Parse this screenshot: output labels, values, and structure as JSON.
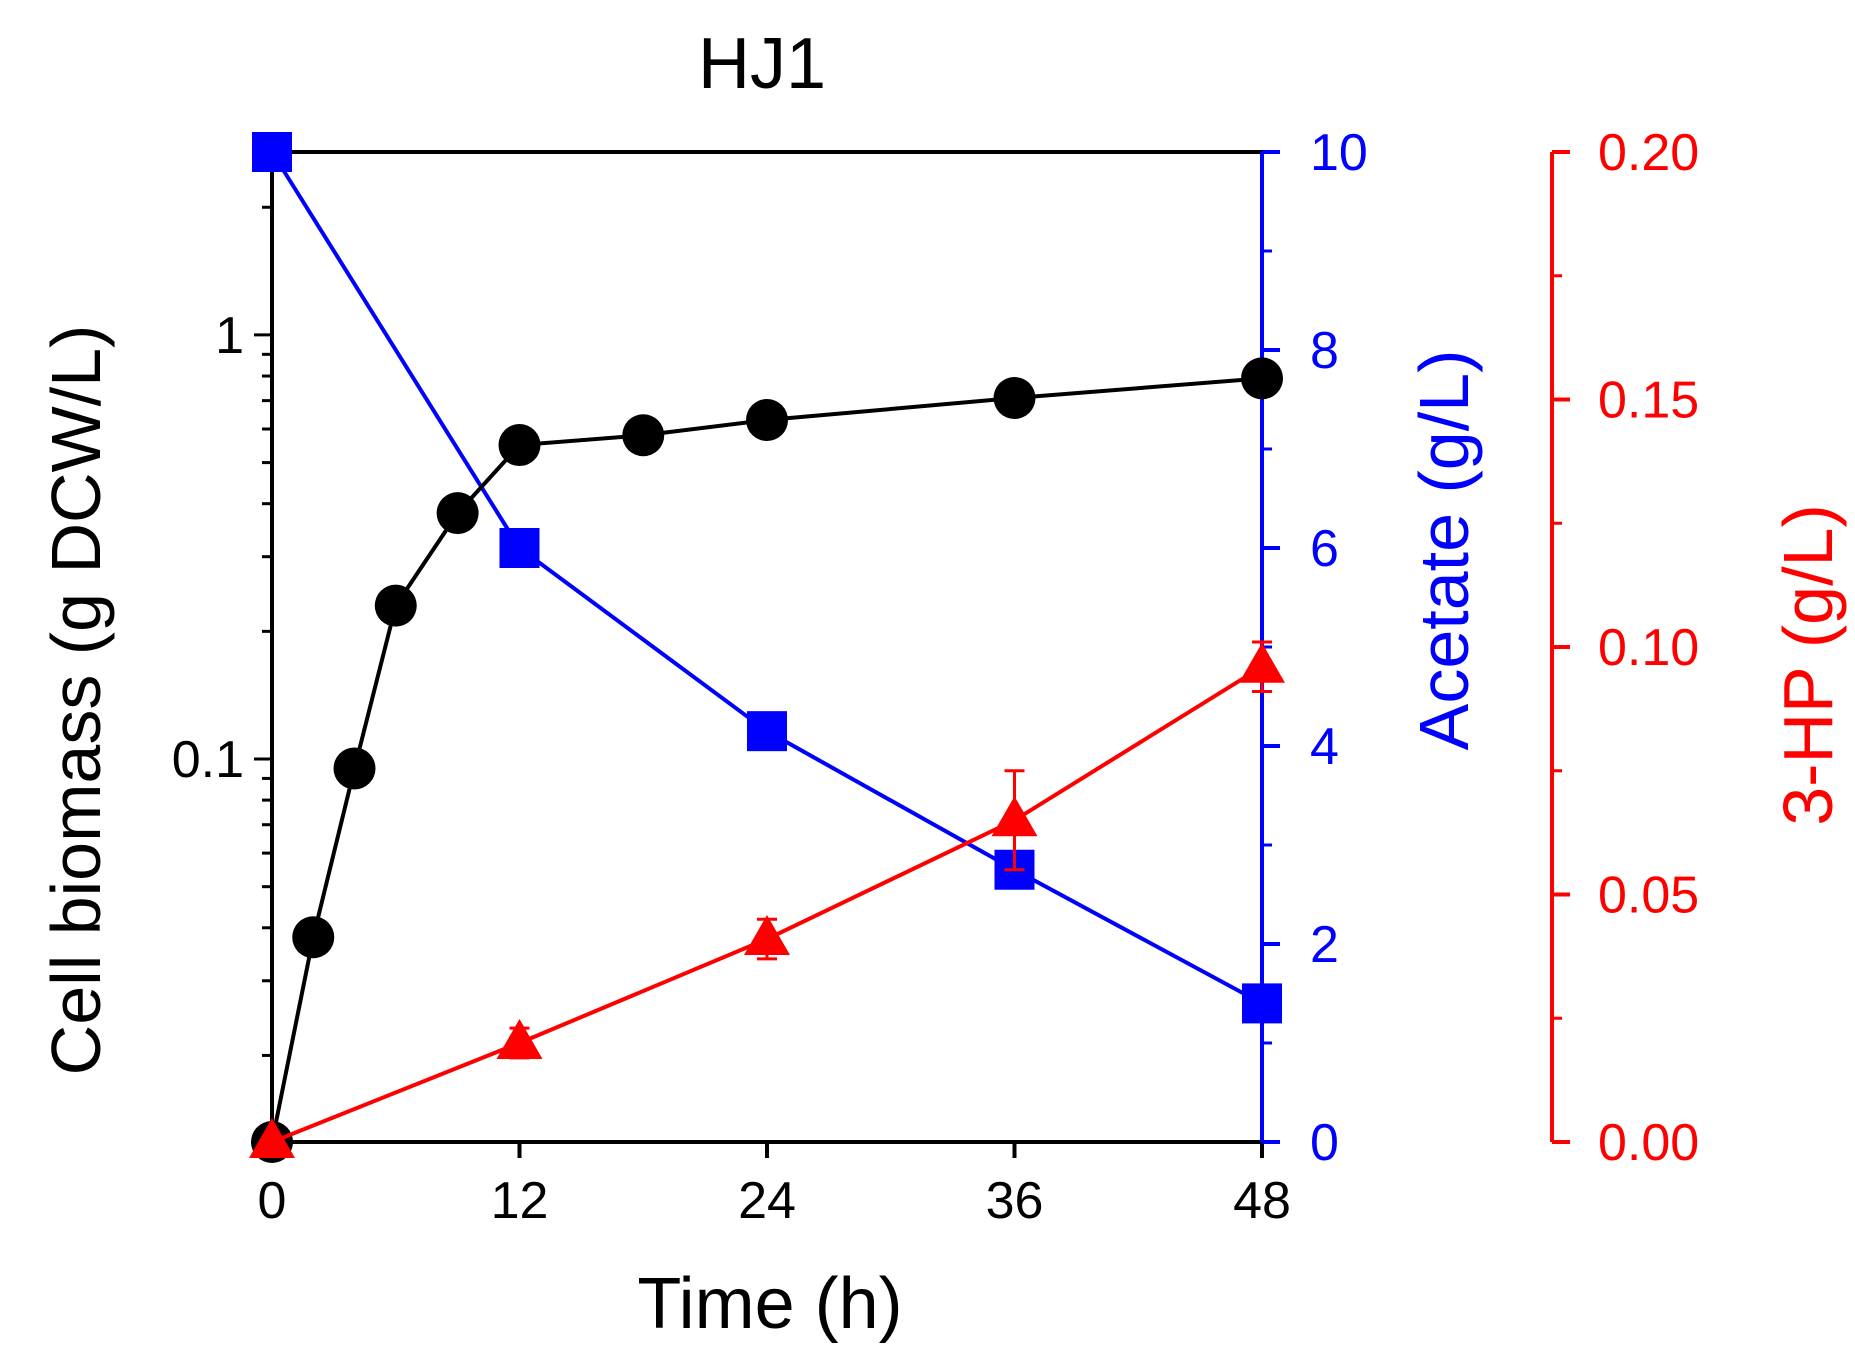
{
  "chart_data": {
    "type": "line",
    "title": "HJ1",
    "xlabel": "Time (h)",
    "xlim": [
      0,
      48
    ],
    "x_ticks": [
      0,
      12,
      24,
      36,
      48
    ],
    "axes": {
      "left": {
        "label": "Cell biomass (g DCW/L)",
        "scale": "log",
        "lim": [
          0.0125,
          2.7
        ],
        "major_ticks": [
          0.1,
          1
        ],
        "tick_labels": [
          "0.1",
          "1"
        ],
        "color": "#000000"
      },
      "right1": {
        "label": "Acetate (g/L)",
        "scale": "linear",
        "lim": [
          0,
          10
        ],
        "ticks": [
          0,
          2,
          4,
          6,
          8,
          10
        ],
        "tick_labels": [
          "0",
          "2",
          "4",
          "6",
          "8",
          "10"
        ],
        "color": "#0000ff"
      },
      "right2": {
        "label": "3-HP (g/L)",
        "scale": "linear",
        "lim": [
          0,
          0.2
        ],
        "ticks": [
          0,
          0.05,
          0.1,
          0.15,
          0.2
        ],
        "tick_labels": [
          "0.00",
          "0.05",
          "0.10",
          "0.15",
          "0.20"
        ],
        "color": "#ff0000"
      }
    },
    "series": [
      {
        "name": "Cell biomass",
        "axis": "left",
        "marker": "circle",
        "color": "#000000",
        "x": [
          0,
          2,
          4,
          6,
          9,
          12,
          18,
          24,
          36,
          48
        ],
        "y": [
          0.0125,
          0.038,
          0.095,
          0.23,
          0.38,
          0.55,
          0.58,
          0.63,
          0.71,
          0.79
        ]
      },
      {
        "name": "Acetate",
        "axis": "right1",
        "marker": "square",
        "color": "#0000ff",
        "x": [
          0,
          12,
          24,
          36,
          48
        ],
        "y": [
          10.0,
          6.0,
          4.15,
          2.75,
          1.4
        ]
      },
      {
        "name": "3-HP",
        "axis": "right2",
        "marker": "triangle",
        "color": "#ff0000",
        "x": [
          0,
          12,
          24,
          36,
          48
        ],
        "y": [
          0.0,
          0.02,
          0.041,
          0.065,
          0.096
        ],
        "err": [
          0.0,
          0.003,
          0.004,
          0.01,
          0.005
        ]
      }
    ]
  }
}
